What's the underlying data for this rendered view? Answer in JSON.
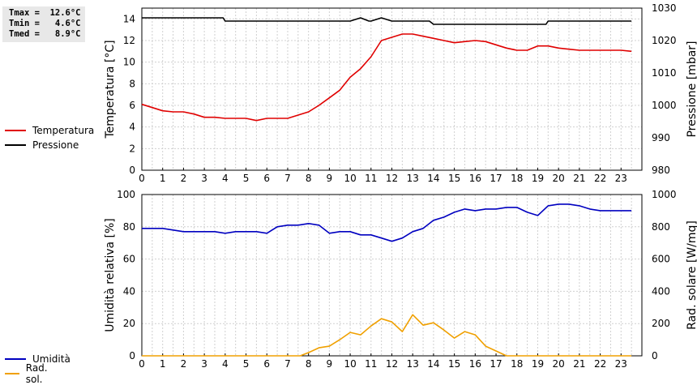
{
  "stats": {
    "tmax": "Tmax =  12.6°C",
    "tmin": "Tmin =   4.6°C",
    "tmed": "Tmed =   8.9°C"
  },
  "colors": {
    "temperatura": "#e00000",
    "pressione": "#000000",
    "umidita": "#0000c0",
    "radsol": "#f0a000",
    "grid": "#d0d0d0"
  },
  "chart_data": [
    {
      "type": "line",
      "xlabel": "",
      "xlim": [
        0,
        24
      ],
      "xticks": [
        0,
        1,
        2,
        3,
        4,
        5,
        6,
        7,
        8,
        9,
        10,
        11,
        12,
        13,
        14,
        15,
        16,
        17,
        18,
        19,
        20,
        21,
        22,
        23
      ],
      "ylabel": "Temperatura [°C]",
      "ylim": [
        0,
        15
      ],
      "yticks": [
        0,
        2,
        4,
        6,
        8,
        10,
        12,
        14
      ],
      "y2label": "Pressione [mbar]",
      "y2lim": [
        980,
        1030
      ],
      "y2ticks": [
        980,
        990,
        1000,
        1010,
        1020,
        1030
      ],
      "grid": true,
      "legend": "left",
      "series": [
        {
          "name": "Temperatura",
          "axis": "left",
          "color": "#e00000",
          "x": [
            0,
            0.5,
            1,
            1.5,
            2,
            2.5,
            3,
            3.5,
            4,
            4.5,
            5,
            5.5,
            6,
            6.5,
            7,
            7.5,
            8,
            8.5,
            9,
            9.5,
            10,
            10.5,
            11,
            11.5,
            12,
            12.5,
            13,
            13.5,
            14,
            14.5,
            15,
            15.5,
            16,
            16.5,
            17,
            17.5,
            18,
            18.5,
            19,
            19.5,
            20,
            20.5,
            21,
            21.5,
            22,
            22.5,
            23,
            23.5
          ],
          "y": [
            6.1,
            5.8,
            5.5,
            5.4,
            5.4,
            5.2,
            4.9,
            4.9,
            4.8,
            4.8,
            4.8,
            4.6,
            4.8,
            4.8,
            4.8,
            5.1,
            5.4,
            6.0,
            6.7,
            7.4,
            8.6,
            9.4,
            10.5,
            12.0,
            12.3,
            12.6,
            12.6,
            12.4,
            12.2,
            12.0,
            11.8,
            11.9,
            12.0,
            11.9,
            11.6,
            11.3,
            11.1,
            11.1,
            11.5,
            11.5,
            11.3,
            11.2,
            11.1,
            11.1,
            11.1,
            11.1,
            11.1,
            11.0
          ]
        },
        {
          "name": "Pressione",
          "axis": "right",
          "color": "#000000",
          "x": [
            0,
            0.5,
            1,
            1.5,
            2,
            2.5,
            3,
            3.5,
            3.9,
            4,
            4.5,
            5,
            5.5,
            6,
            6.5,
            7,
            7.5,
            8,
            8.5,
            9,
            9.5,
            10,
            10.5,
            10.9,
            11,
            11.5,
            12,
            12.5,
            13,
            13.5,
            13.8,
            14,
            14.5,
            15,
            15.5,
            16,
            16.5,
            17,
            17.5,
            18,
            18.5,
            19,
            19.4,
            19.5,
            20,
            20.5,
            21,
            21.5,
            22,
            22.5,
            23,
            23.5
          ],
          "y": [
            1027,
            1027,
            1027,
            1027,
            1027,
            1027,
            1027,
            1027,
            1027,
            1026,
            1026,
            1026,
            1026,
            1026,
            1026,
            1026,
            1026,
            1026,
            1026,
            1026,
            1026,
            1026,
            1027,
            1026,
            1026,
            1027,
            1026,
            1026,
            1026,
            1026,
            1026,
            1025,
            1025,
            1025,
            1025,
            1025,
            1025,
            1025,
            1025,
            1025,
            1025,
            1025,
            1025,
            1026,
            1026,
            1026,
            1026,
            1026,
            1026,
            1026,
            1026,
            1026
          ]
        }
      ]
    },
    {
      "type": "line",
      "xlabel": "",
      "xlim": [
        0,
        24
      ],
      "xticks": [
        0,
        1,
        2,
        3,
        4,
        5,
        6,
        7,
        8,
        9,
        10,
        11,
        12,
        13,
        14,
        15,
        16,
        17,
        18,
        19,
        20,
        21,
        22,
        23
      ],
      "ylabel": "Umidità relativa [%]",
      "ylim": [
        0,
        100
      ],
      "yticks": [
        0,
        20,
        40,
        60,
        80,
        100
      ],
      "y2label": "Rad. solare [W/mq]",
      "y2lim": [
        0,
        1000
      ],
      "y2ticks": [
        0,
        200,
        400,
        600,
        800,
        1000
      ],
      "grid": true,
      "legend": "left",
      "series": [
        {
          "name": "Umidità",
          "axis": "left",
          "color": "#0000c0",
          "x": [
            0,
            0.5,
            1,
            1.5,
            2,
            2.5,
            3,
            3.5,
            4,
            4.5,
            5,
            5.5,
            6,
            6.5,
            7,
            7.5,
            8,
            8.5,
            9,
            9.5,
            10,
            10.5,
            11,
            11.5,
            12,
            12.5,
            13,
            13.5,
            14,
            14.5,
            15,
            15.5,
            16,
            16.5,
            17,
            17.5,
            18,
            18.5,
            19,
            19.5,
            20,
            20.5,
            21,
            21.5,
            22,
            22.5,
            23,
            23.5
          ],
          "y": [
            79,
            79,
            79,
            78,
            77,
            77,
            77,
            77,
            76,
            77,
            77,
            77,
            76,
            80,
            81,
            81,
            82,
            81,
            76,
            77,
            77,
            75,
            75,
            73,
            71,
            73,
            77,
            79,
            84,
            86,
            89,
            91,
            90,
            91,
            91,
            92,
            92,
            89,
            87,
            93,
            94,
            94,
            93,
            91,
            90,
            90,
            90,
            90
          ]
        },
        {
          "name": "Rad. sol.",
          "axis": "right",
          "color": "#f0a000",
          "x": [
            0,
            1,
            2,
            3,
            4,
            5,
            6,
            7,
            7.6,
            8,
            8.5,
            9,
            9.5,
            10,
            10.5,
            11,
            11.5,
            12,
            12.5,
            13,
            13.5,
            14,
            14.5,
            15,
            15.5,
            16,
            16.5,
            17,
            17.5,
            18,
            19,
            20,
            21,
            22,
            23,
            23.5
          ],
          "y": [
            0,
            0,
            0,
            0,
            0,
            0,
            0,
            0,
            0,
            20,
            50,
            60,
            100,
            145,
            130,
            185,
            230,
            210,
            150,
            255,
            190,
            205,
            160,
            110,
            150,
            130,
            60,
            30,
            0,
            0,
            0,
            0,
            0,
            0,
            0,
            0
          ]
        }
      ]
    }
  ]
}
